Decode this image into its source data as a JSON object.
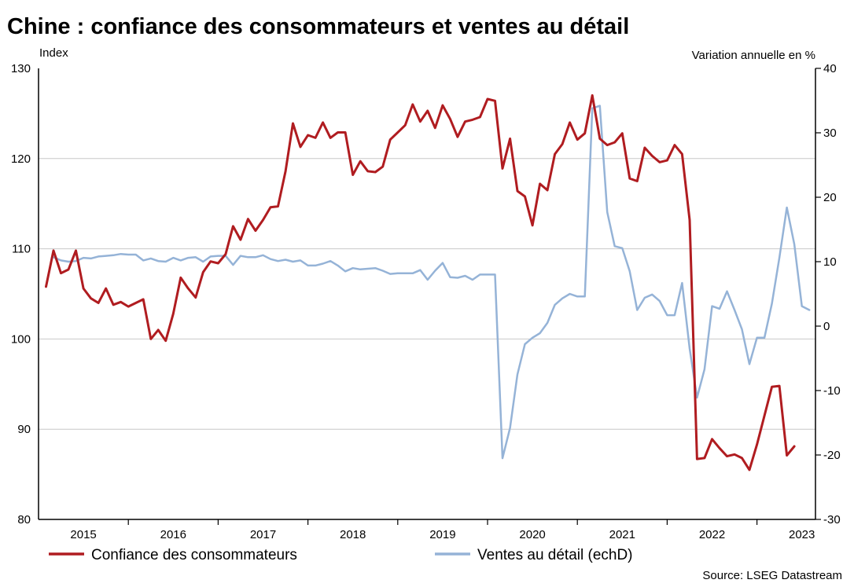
{
  "chart_data": {
    "type": "line",
    "title": "Chine : confiance des consommateurs et ventes au détail",
    "left_axis_label": "Index",
    "right_axis_label": "Variation annuelle en %",
    "ylim_left": [
      80,
      130
    ],
    "ylim_right": [
      -30,
      40
    ],
    "left_ticks": [
      "80",
      "90",
      "100",
      "110",
      "120",
      "130"
    ],
    "right_ticks": [
      "-30",
      "-20",
      "-10",
      "0",
      "10",
      "20",
      "30",
      "40"
    ],
    "x_labels": [
      "2015",
      "2016",
      "2017",
      "2018",
      "2019",
      "2020",
      "2021",
      "2022",
      "2023"
    ],
    "grid": true,
    "legend": [
      "Confiance des consommateurs",
      "Ventes au détail (echD)"
    ],
    "source": "Source: LSEG Datastream",
    "series": [
      {
        "name": "Confiance des consommateurs",
        "axis": "left",
        "color": "#b01c20",
        "values": [
          [
            2015.0,
            105.8
          ],
          [
            2015.083,
            109.8
          ],
          [
            2015.167,
            107.3
          ],
          [
            2015.25,
            107.7
          ],
          [
            2015.333,
            109.8
          ],
          [
            2015.417,
            105.6
          ],
          [
            2015.5,
            104.5
          ],
          [
            2015.583,
            104.0
          ],
          [
            2015.667,
            105.6
          ],
          [
            2015.75,
            103.8
          ],
          [
            2015.833,
            104.1
          ],
          [
            2015.917,
            103.6
          ],
          [
            2016.0,
            104.0
          ],
          [
            2016.083,
            104.4
          ],
          [
            2016.167,
            100.0
          ],
          [
            2016.25,
            101.0
          ],
          [
            2016.333,
            99.8
          ],
          [
            2016.417,
            102.8
          ],
          [
            2016.5,
            106.8
          ],
          [
            2016.583,
            105.6
          ],
          [
            2016.667,
            104.6
          ],
          [
            2016.75,
            107.4
          ],
          [
            2016.833,
            108.6
          ],
          [
            2016.917,
            108.4
          ],
          [
            2017.0,
            109.4
          ],
          [
            2017.083,
            112.5
          ],
          [
            2017.167,
            111.0
          ],
          [
            2017.25,
            113.3
          ],
          [
            2017.333,
            112.0
          ],
          [
            2017.417,
            113.2
          ],
          [
            2017.5,
            114.6
          ],
          [
            2017.583,
            114.7
          ],
          [
            2017.667,
            118.6
          ],
          [
            2017.75,
            123.9
          ],
          [
            2017.833,
            121.3
          ],
          [
            2017.917,
            122.6
          ],
          [
            2018.0,
            122.3
          ],
          [
            2018.083,
            124.0
          ],
          [
            2018.167,
            122.3
          ],
          [
            2018.25,
            122.9
          ],
          [
            2018.333,
            122.9
          ],
          [
            2018.417,
            118.2
          ],
          [
            2018.5,
            119.7
          ],
          [
            2018.583,
            118.6
          ],
          [
            2018.667,
            118.5
          ],
          [
            2018.75,
            119.1
          ],
          [
            2018.833,
            122.1
          ],
          [
            2018.917,
            122.9
          ],
          [
            2019.0,
            123.7
          ],
          [
            2019.083,
            126.0
          ],
          [
            2019.167,
            124.1
          ],
          [
            2019.25,
            125.3
          ],
          [
            2019.333,
            123.4
          ],
          [
            2019.417,
            125.9
          ],
          [
            2019.5,
            124.4
          ],
          [
            2019.583,
            122.4
          ],
          [
            2019.667,
            124.1
          ],
          [
            2019.75,
            124.3
          ],
          [
            2019.833,
            124.6
          ],
          [
            2019.917,
            126.6
          ],
          [
            2020.0,
            126.4
          ],
          [
            2020.083,
            118.9
          ],
          [
            2020.167,
            122.2
          ],
          [
            2020.25,
            116.4
          ],
          [
            2020.333,
            115.8
          ],
          [
            2020.417,
            112.6
          ],
          [
            2020.5,
            117.2
          ],
          [
            2020.583,
            116.5
          ],
          [
            2020.667,
            120.5
          ],
          [
            2020.75,
            121.6
          ],
          [
            2020.833,
            124.0
          ],
          [
            2020.917,
            122.1
          ],
          [
            2021.0,
            122.8
          ],
          [
            2021.083,
            127.0
          ],
          [
            2021.167,
            122.2
          ],
          [
            2021.25,
            121.5
          ],
          [
            2021.333,
            121.8
          ],
          [
            2021.417,
            122.8
          ],
          [
            2021.5,
            117.8
          ],
          [
            2021.583,
            117.5
          ],
          [
            2021.667,
            121.2
          ],
          [
            2021.75,
            120.3
          ],
          [
            2021.833,
            119.6
          ],
          [
            2021.917,
            119.8
          ],
          [
            2022.0,
            121.5
          ],
          [
            2022.083,
            120.5
          ],
          [
            2022.167,
            113.2
          ],
          [
            2022.25,
            86.7
          ],
          [
            2022.333,
            86.8
          ],
          [
            2022.417,
            88.9
          ],
          [
            2022.5,
            87.9
          ],
          [
            2022.583,
            87.0
          ],
          [
            2022.667,
            87.2
          ],
          [
            2022.75,
            86.8
          ],
          [
            2022.833,
            85.5
          ],
          [
            2022.917,
            88.3
          ],
          [
            2023.0,
            91.5
          ],
          [
            2023.083,
            94.7
          ],
          [
            2023.167,
            94.8
          ],
          [
            2023.25,
            87.1
          ],
          [
            2023.333,
            88.1
          ]
        ]
      },
      {
        "name": "Ventes au détail (echD)",
        "axis": "right",
        "color": "#95b3d7",
        "values": [
          [
            2015.083,
            10.7
          ],
          [
            2015.167,
            10.2
          ],
          [
            2015.25,
            10.0
          ],
          [
            2015.333,
            10.1
          ],
          [
            2015.417,
            10.6
          ],
          [
            2015.5,
            10.5
          ],
          [
            2015.583,
            10.8
          ],
          [
            2015.667,
            10.9
          ],
          [
            2015.75,
            11.0
          ],
          [
            2015.833,
            11.2
          ],
          [
            2015.917,
            11.1
          ],
          [
            2016.0,
            11.1
          ],
          [
            2016.083,
            10.2
          ],
          [
            2016.167,
            10.5
          ],
          [
            2016.25,
            10.1
          ],
          [
            2016.333,
            10.0
          ],
          [
            2016.417,
            10.6
          ],
          [
            2016.5,
            10.2
          ],
          [
            2016.583,
            10.6
          ],
          [
            2016.667,
            10.7
          ],
          [
            2016.75,
            10.0
          ],
          [
            2016.833,
            10.8
          ],
          [
            2016.917,
            10.9
          ],
          [
            2017.0,
            10.9
          ],
          [
            2017.083,
            9.5
          ],
          [
            2017.167,
            10.9
          ],
          [
            2017.25,
            10.7
          ],
          [
            2017.333,
            10.7
          ],
          [
            2017.417,
            11.0
          ],
          [
            2017.5,
            10.4
          ],
          [
            2017.583,
            10.1
          ],
          [
            2017.667,
            10.3
          ],
          [
            2017.75,
            10.0
          ],
          [
            2017.833,
            10.2
          ],
          [
            2017.917,
            9.4
          ],
          [
            2018.0,
            9.4
          ],
          [
            2018.083,
            9.7
          ],
          [
            2018.167,
            10.1
          ],
          [
            2018.25,
            9.4
          ],
          [
            2018.333,
            8.5
          ],
          [
            2018.417,
            9.0
          ],
          [
            2018.5,
            8.8
          ],
          [
            2018.583,
            8.9
          ],
          [
            2018.667,
            9.0
          ],
          [
            2018.75,
            8.6
          ],
          [
            2018.833,
            8.1
          ],
          [
            2018.917,
            8.2
          ],
          [
            2019.0,
            8.2
          ],
          [
            2019.083,
            8.2
          ],
          [
            2019.167,
            8.7
          ],
          [
            2019.25,
            7.2
          ],
          [
            2019.333,
            8.6
          ],
          [
            2019.417,
            9.8
          ],
          [
            2019.5,
            7.6
          ],
          [
            2019.583,
            7.5
          ],
          [
            2019.667,
            7.8
          ],
          [
            2019.75,
            7.2
          ],
          [
            2019.833,
            8.0
          ],
          [
            2019.917,
            8.0
          ],
          [
            2020.0,
            8.0
          ],
          [
            2020.083,
            -20.5
          ],
          [
            2020.167,
            -15.8
          ],
          [
            2020.25,
            -7.5
          ],
          [
            2020.333,
            -2.8
          ],
          [
            2020.417,
            -1.8
          ],
          [
            2020.5,
            -1.1
          ],
          [
            2020.583,
            0.5
          ],
          [
            2020.667,
            3.3
          ],
          [
            2020.75,
            4.3
          ],
          [
            2020.833,
            5.0
          ],
          [
            2020.917,
            4.6
          ],
          [
            2021.0,
            4.6
          ],
          [
            2021.083,
            33.8
          ],
          [
            2021.167,
            34.2
          ],
          [
            2021.25,
            17.7
          ],
          [
            2021.333,
            12.4
          ],
          [
            2021.417,
            12.1
          ],
          [
            2021.5,
            8.5
          ],
          [
            2021.583,
            2.5
          ],
          [
            2021.667,
            4.4
          ],
          [
            2021.75,
            4.9
          ],
          [
            2021.833,
            3.9
          ],
          [
            2021.917,
            1.7
          ],
          [
            2022.0,
            1.7
          ],
          [
            2022.083,
            6.7
          ],
          [
            2022.167,
            -3.5
          ],
          [
            2022.25,
            -11.1
          ],
          [
            2022.333,
            -6.7
          ],
          [
            2022.417,
            3.1
          ],
          [
            2022.5,
            2.7
          ],
          [
            2022.583,
            5.4
          ],
          [
            2022.667,
            2.5
          ],
          [
            2022.75,
            -0.5
          ],
          [
            2022.833,
            -5.9
          ],
          [
            2022.917,
            -1.8
          ],
          [
            2023.0,
            -1.8
          ],
          [
            2023.083,
            3.5
          ],
          [
            2023.167,
            10.6
          ],
          [
            2023.25,
            18.4
          ],
          [
            2023.333,
            12.7
          ],
          [
            2023.417,
            3.1
          ],
          [
            2023.5,
            2.5
          ]
        ]
      }
    ]
  }
}
